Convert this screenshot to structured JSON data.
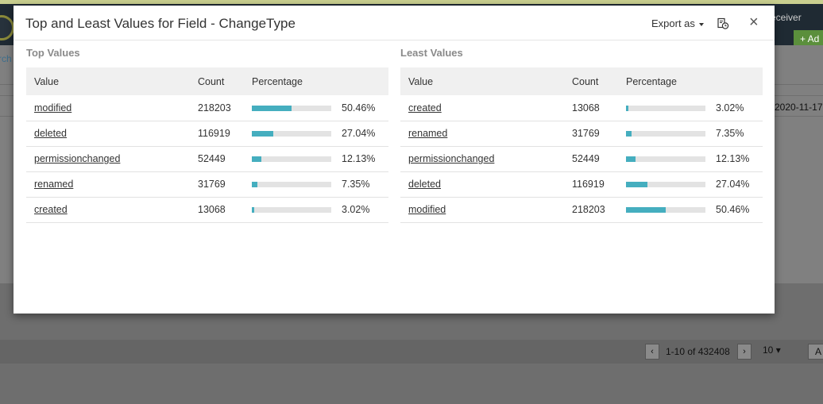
{
  "background": {
    "receiver_text": "eceiver",
    "add_label": "+ Ad",
    "search_text": "rch",
    "date_text": "2020-11-17",
    "pager": {
      "range_text": "1-10 of 432408",
      "page_size": "10",
      "extra_label": "A"
    }
  },
  "modal": {
    "title": "Top and Least Values for Field - ChangeType",
    "export_label": "Export as",
    "close_symbol": "×",
    "icons": {
      "export_caret": "caret-down-icon",
      "report": "report-schedule-icon",
      "close": "close-icon"
    },
    "accent_color": "#45aebf",
    "columns": {
      "value": "Value",
      "count": "Count",
      "percentage": "Percentage"
    },
    "top": {
      "title": "Top Values",
      "rows": [
        {
          "value": "modified",
          "count": "218203",
          "percentage": "50.46%",
          "fraction": 0.5046
        },
        {
          "value": "deleted",
          "count": "116919",
          "percentage": "27.04%",
          "fraction": 0.2704
        },
        {
          "value": "permissionchanged",
          "count": "52449",
          "percentage": "12.13%",
          "fraction": 0.1213
        },
        {
          "value": "renamed",
          "count": "31769",
          "percentage": "7.35%",
          "fraction": 0.0735
        },
        {
          "value": "created",
          "count": "13068",
          "percentage": "3.02%",
          "fraction": 0.0302
        }
      ]
    },
    "least": {
      "title": "Least Values",
      "rows": [
        {
          "value": "created",
          "count": "13068",
          "percentage": "3.02%",
          "fraction": 0.0302
        },
        {
          "value": "renamed",
          "count": "31769",
          "percentage": "7.35%",
          "fraction": 0.0735
        },
        {
          "value": "permissionchanged",
          "count": "52449",
          "percentage": "12.13%",
          "fraction": 0.1213
        },
        {
          "value": "deleted",
          "count": "116919",
          "percentage": "27.04%",
          "fraction": 0.2704
        },
        {
          "value": "modified",
          "count": "218203",
          "percentage": "50.46%",
          "fraction": 0.5046
        }
      ]
    }
  }
}
